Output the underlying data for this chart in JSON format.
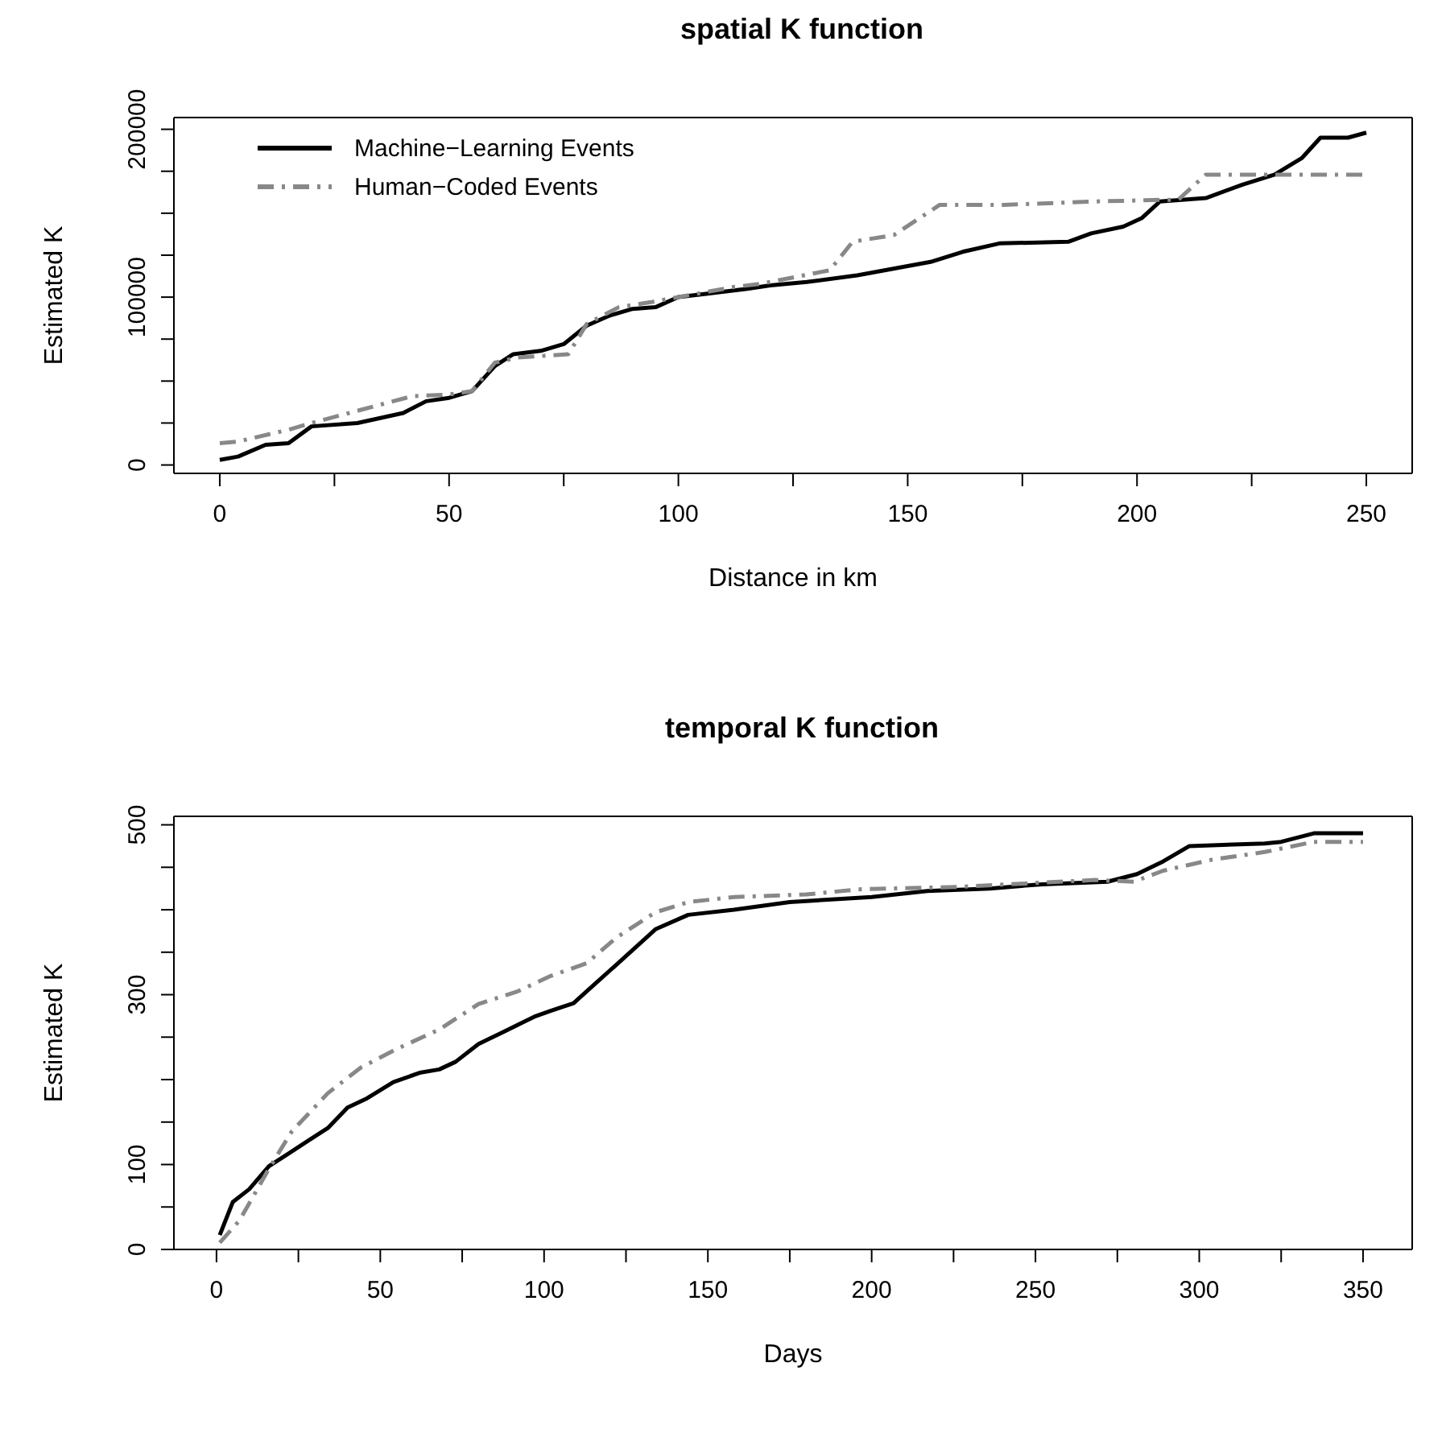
{
  "chart_data": [
    {
      "type": "line",
      "title": "spatial K function",
      "xlabel": "Distance in km",
      "ylabel": "Estimated K",
      "xlim": [
        -10,
        260
      ],
      "ylim": [
        -5000,
        207000
      ],
      "xticks": [
        0,
        {
          "value": 25,
          "label": null
        },
        50,
        {
          "value": 75,
          "label": null
        },
        100,
        {
          "value": 125,
          "label": null
        },
        150,
        {
          "value": 175,
          "label": null
        },
        200,
        {
          "value": 225,
          "label": null
        },
        250
      ],
      "yticks": [
        0,
        {
          "value": 25000,
          "label": null
        },
        {
          "value": 50000,
          "label": null
        },
        {
          "value": 75000,
          "label": null
        },
        100000,
        {
          "value": 125000,
          "label": null
        },
        {
          "value": 150000,
          "label": null
        },
        {
          "value": 175000,
          "label": null
        },
        200000
      ],
      "legend": "top left",
      "marker": "none",
      "series": [
        {
          "name": "Machine−Learning Events",
          "color": "#000000",
          "line_style": "solid",
          "x": [
            0,
            4,
            10,
            15,
            20,
            30,
            35,
            40,
            45,
            50,
            55,
            60,
            64,
            70,
            75,
            80,
            85,
            90,
            95,
            100,
            106,
            115,
            120,
            128,
            139,
            155,
            162,
            170,
            185,
            190,
            197,
            201,
            205,
            215,
            223,
            230,
            236,
            240,
            246,
            250
          ],
          "values": [
            3000,
            5000,
            12000,
            13000,
            23000,
            25000,
            28000,
            31000,
            38000,
            40000,
            44000,
            59000,
            66000,
            68000,
            72000,
            83000,
            89000,
            93000,
            94000,
            100000,
            102000,
            105000,
            107000,
            109000,
            113000,
            121000,
            127000,
            132000,
            133000,
            138000,
            142000,
            147000,
            157000,
            159000,
            167000,
            173000,
            183000,
            195000,
            195000,
            198000
          ]
        },
        {
          "name": "Human−Coded Events",
          "color": "#888888",
          "line_style": "dashed",
          "x": [
            0,
            4,
            15,
            20,
            31,
            42,
            50,
            55,
            60,
            65,
            76,
            80,
            87,
            94,
            100,
            112,
            118,
            133,
            138,
            147,
            157,
            171,
            191,
            206,
            209,
            215,
            250
          ],
          "values": [
            13000,
            14000,
            21000,
            25000,
            33000,
            41000,
            42000,
            44000,
            61000,
            64000,
            66000,
            84000,
            94000,
            97000,
            100000,
            106000,
            108000,
            116000,
            133000,
            137000,
            155000,
            155000,
            157000,
            158000,
            158000,
            173000,
            173000
          ]
        }
      ]
    },
    {
      "type": "line",
      "title": "temporal K function",
      "xlabel": "Days",
      "ylabel": "Estimated K",
      "xlim": [
        -13,
        365
      ],
      "ylim": [
        0,
        510
      ],
      "xticks": [
        0,
        {
          "value": 25,
          "label": null
        },
        50,
        {
          "value": 75,
          "label": null
        },
        100,
        {
          "value": 125,
          "label": null
        },
        150,
        {
          "value": 175,
          "label": null
        },
        200,
        {
          "value": 225,
          "label": null
        },
        250,
        {
          "value": 275,
          "label": null
        },
        300,
        {
          "value": 325,
          "label": null
        },
        350
      ],
      "yticks": [
        0,
        {
          "value": 50,
          "label": null
        },
        100,
        {
          "value": 150,
          "label": null
        },
        {
          "value": 200,
          "label": null
        },
        {
          "value": 250,
          "label": null
        },
        300,
        {
          "value": 350,
          "label": null
        },
        {
          "value": 400,
          "label": null
        },
        {
          "value": 450,
          "label": null
        },
        500
      ],
      "marker": "none",
      "series": [
        {
          "color": "#000000",
          "line_style": "solid",
          "x": [
            1,
            5,
            10,
            16,
            22,
            28,
            34,
            40,
            46,
            54,
            62,
            68,
            73,
            80,
            88,
            97,
            102,
            109,
            113,
            122,
            134,
            144,
            158,
            175,
            200,
            217,
            236,
            252,
            272,
            281,
            289,
            297,
            320,
            325,
            335,
            350
          ],
          "values": [
            17,
            56,
            71,
            98,
            113,
            128,
            143,
            167,
            178,
            197,
            208,
            212,
            221,
            242,
            257,
            274,
            281,
            290,
            304,
            335,
            377,
            394,
            400,
            409,
            415,
            422,
            425,
            430,
            433,
            442,
            457,
            475,
            478,
            480,
            490,
            490
          ]
        },
        {
          "color": "#888888",
          "line_style": "dashed",
          "x": [
            1,
            7,
            16,
            23,
            34,
            44,
            55,
            68,
            80,
            92,
            102,
            113,
            122,
            134,
            144,
            158,
            180,
            196,
            227,
            268,
            280,
            289,
            304,
            320,
            335,
            350
          ],
          "values": [
            8,
            34,
            95,
            139,
            184,
            214,
            236,
            259,
            289,
            304,
            322,
            337,
            367,
            397,
            409,
            415,
            418,
            424,
            427,
            435,
            433,
            446,
            459,
            468,
            480,
            480
          ]
        }
      ]
    }
  ]
}
